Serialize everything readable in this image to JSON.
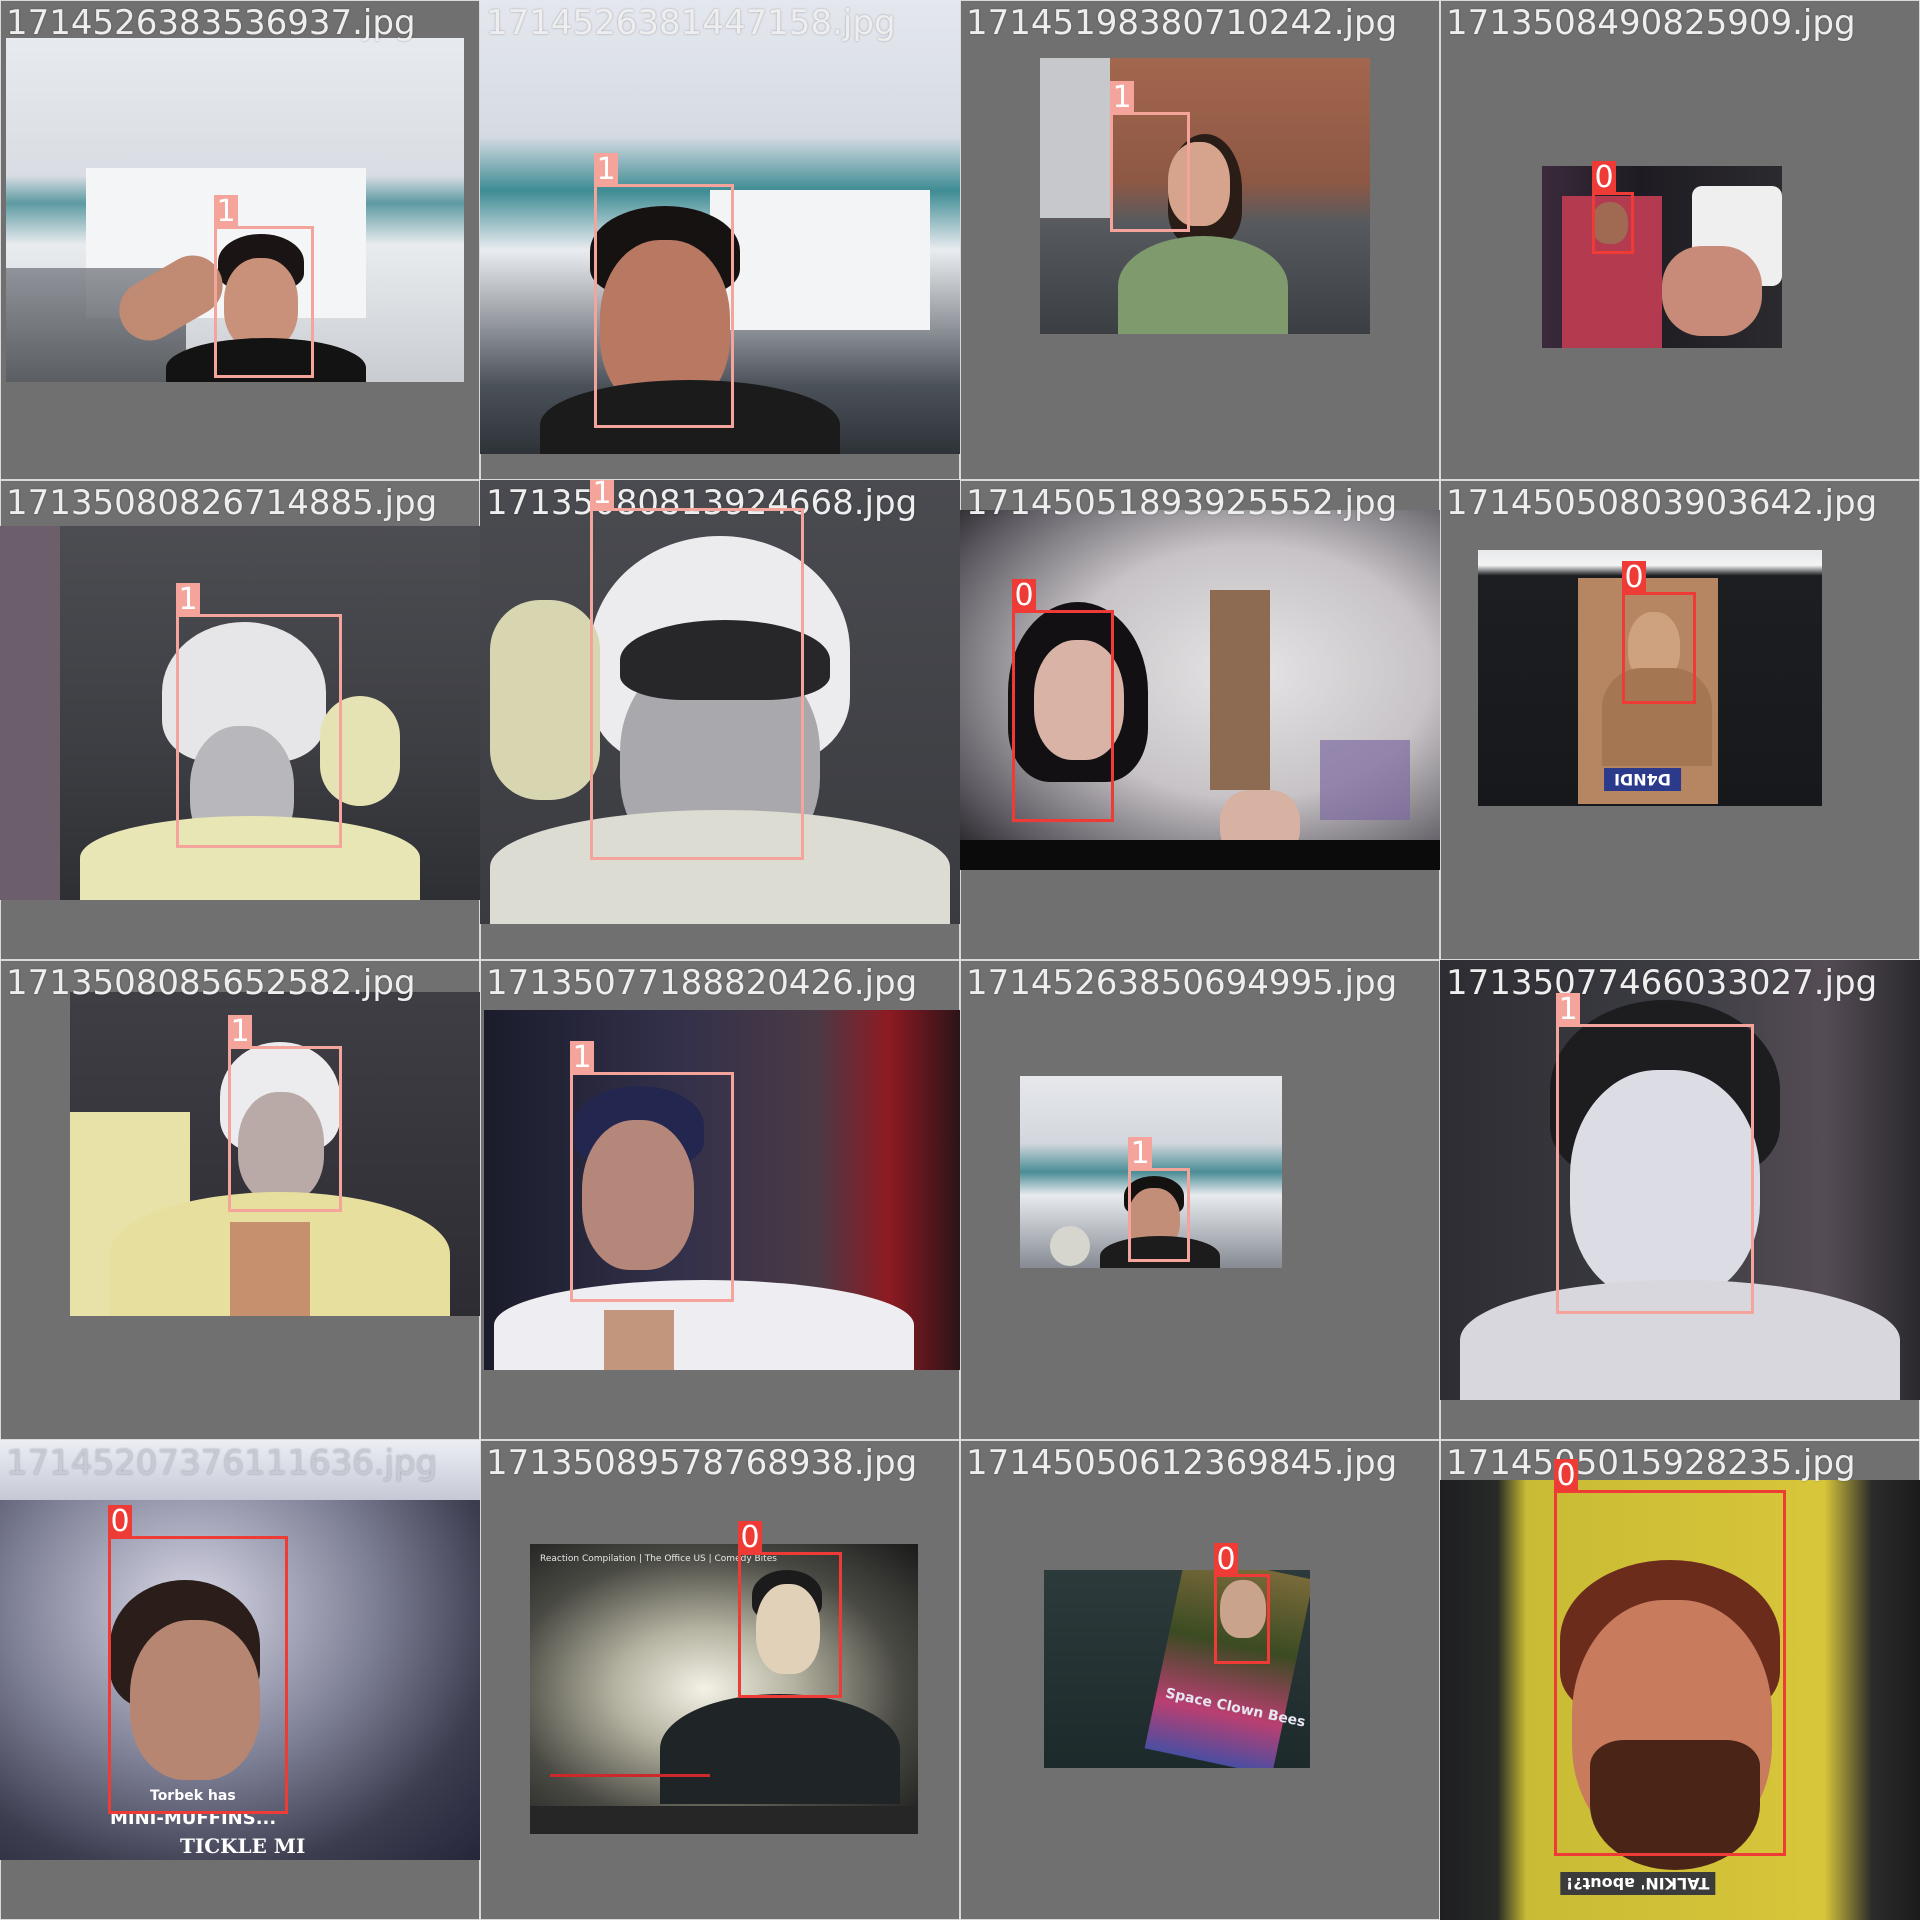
{
  "colors": {
    "class_1": "#f4a49a",
    "class_0": "#ef3b36",
    "background": "#707070"
  },
  "tiles": [
    {
      "filename": "1714526383536937.jpg",
      "label": "1"
    },
    {
      "filename": "1714526381447158.jpg",
      "label": "1"
    },
    {
      "filename": "17145198380710242.jpg",
      "label": "1"
    },
    {
      "filename": "1713508490825909.jpg",
      "label": "0"
    },
    {
      "filename": "17135080826714885.jpg",
      "label": "1"
    },
    {
      "filename": "17135080813924668.jpg",
      "label": "1"
    },
    {
      "filename": "17145051893925552.jpg",
      "label": "0"
    },
    {
      "filename": "17145050803903642.jpg",
      "label": "0"
    },
    {
      "filename": "1713508085652582.jpg",
      "label": "1"
    },
    {
      "filename": "17135077188820426.jpg",
      "label": "1"
    },
    {
      "filename": "17145263850694995.jpg",
      "label": "1"
    },
    {
      "filename": "17135077466033027.jpg",
      "label": "1"
    },
    {
      "filename": "17145207376111636.jpg",
      "label": "0"
    },
    {
      "filename": "17135089578768938.jpg",
      "label": "0"
    },
    {
      "filename": "17145050612369845.jpg",
      "label": "0"
    },
    {
      "filename": "1714505015928235.jpg",
      "label": "0"
    }
  ],
  "overlays": {
    "t8_card": "D4NDI",
    "t13_caption_small": "Torbek has",
    "t13_caption": "MINI-MUFFINS...",
    "t13_footer": "TICKLE MI",
    "t14_title": "Reaction Compilation | The Office US | Comedy Bites",
    "t15_caption": "Space Clown Bees",
    "t16_caption": "TALKIN' about?!"
  }
}
